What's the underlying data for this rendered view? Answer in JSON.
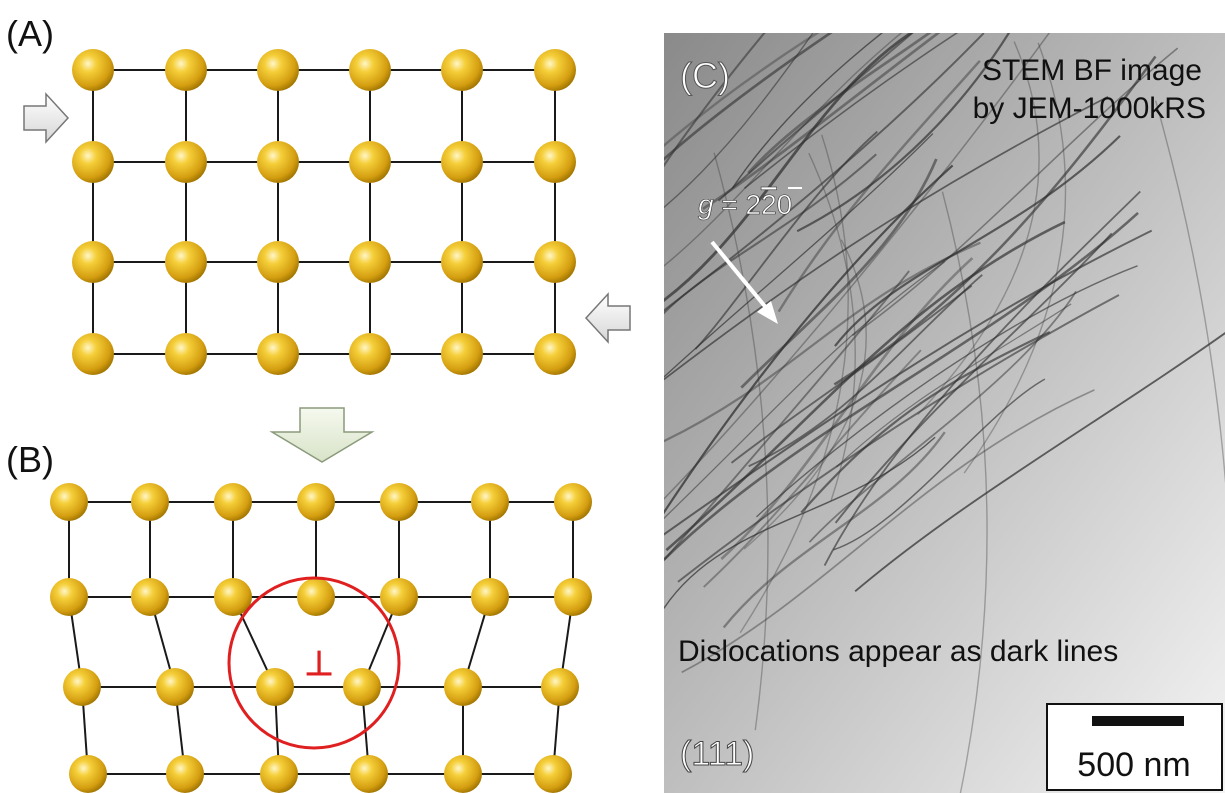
{
  "panels": {
    "a": {
      "label": "(A)"
    },
    "b": {
      "label": "(B)",
      "dislocation_symbol": "⊥"
    },
    "c": {
      "label": "(C)",
      "title_line1": "STEM BF image",
      "title_line2": "by JEM-1000kRS",
      "g_prefix": "g",
      "g_equals": " = 2",
      "g_bar_digit": "2",
      "g_suffix": "0",
      "caption": "Dislocations appear as dark lines",
      "plane": "(111)",
      "scale_label": "500 nm"
    }
  },
  "colors": {
    "atom": "#e0b21c",
    "atom_shadow": "#a67c00",
    "bond": "#1a1a1a",
    "circle": "#e02020",
    "arrow_fill": "#f2f2f2",
    "big_arrow_fill": "#eaf0e0"
  },
  "lattice": {
    "a_rows": 4,
    "a_cols": 6,
    "b_rows": 4,
    "b_top_cols": 7,
    "b_bottom_cols": 6
  }
}
